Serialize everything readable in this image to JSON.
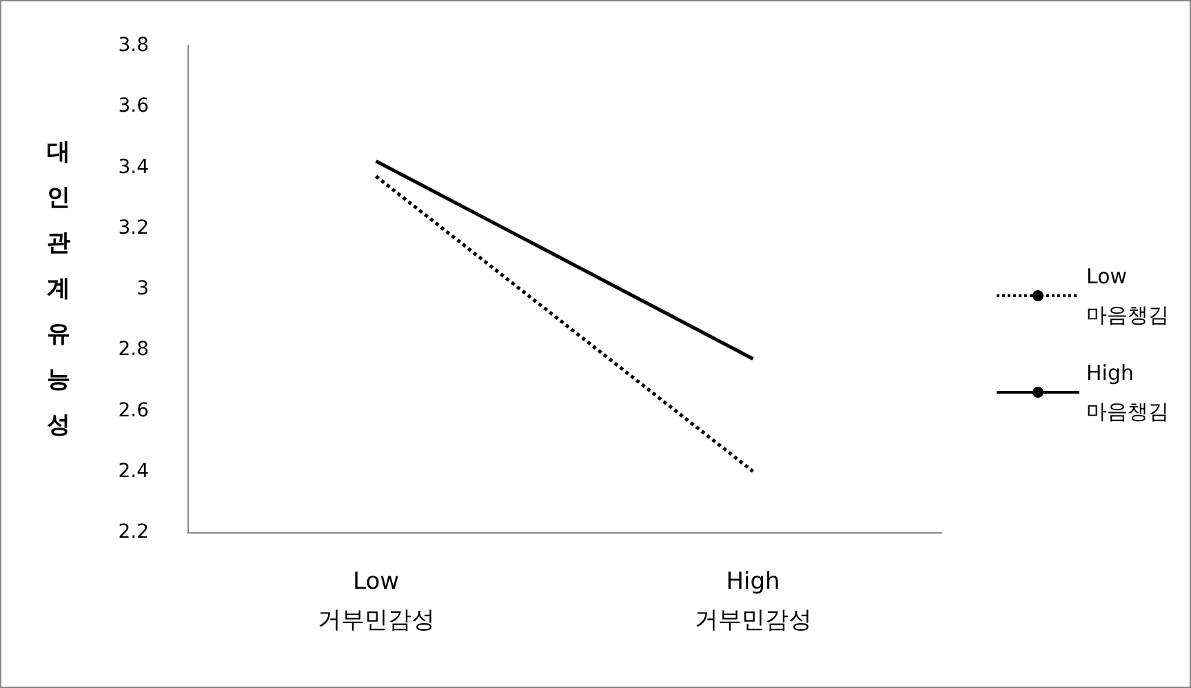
{
  "chart_data": {
    "type": "line",
    "ylabel": "대인관계유능성",
    "categories": [
      "Low\n거부민감성",
      "High\n거부민감성"
    ],
    "series": [
      {
        "name": "Low\n마음챙김",
        "color": "#000000",
        "line_style": "dotted",
        "values": [
          3.37,
          2.4
        ]
      },
      {
        "name": "High\n마음챙김",
        "color": "#000000",
        "line_style": "solid",
        "values": [
          3.42,
          2.77
        ]
      }
    ],
    "ylim": [
      2.2,
      3.8
    ],
    "yticks": [
      2.2,
      2.4,
      2.6,
      2.8,
      3,
      3.2,
      3.4,
      3.6,
      3.8
    ],
    "grid": false,
    "legend": "right",
    "marker": "none"
  }
}
